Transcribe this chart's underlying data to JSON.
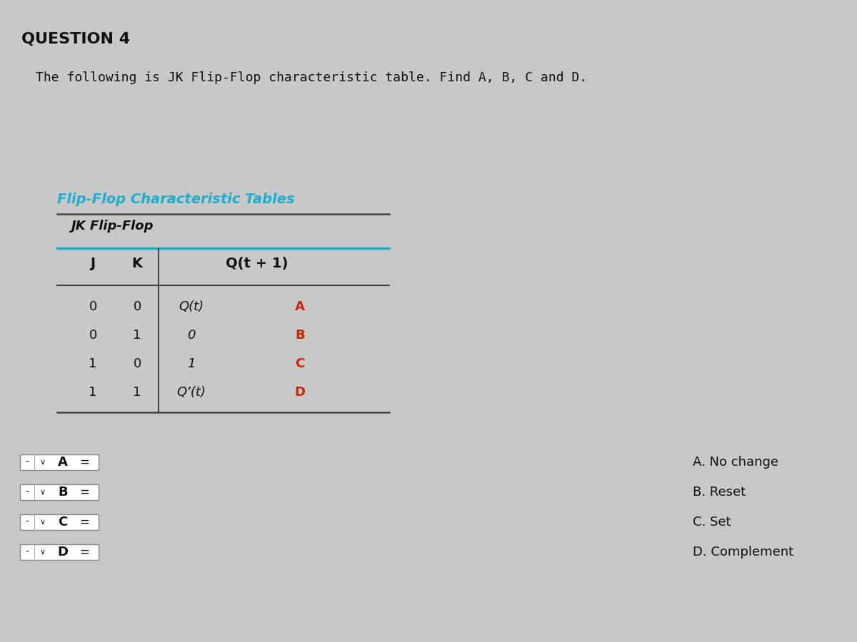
{
  "title": "QUESTION 4",
  "subtitle": "The following is JK Flip-Flop characteristic table. Find A, B, C and D.",
  "table_title": "Flip-Flop Characteristic Tables",
  "table_subtitle": "JK Flip-Flop",
  "col_headers": [
    "J",
    "K",
    "Q(t + 1)"
  ],
  "table_rows": [
    [
      "0",
      "0",
      "Q(t)",
      "A"
    ],
    [
      "0",
      "1",
      "0",
      "B"
    ],
    [
      "1",
      "0",
      "1",
      "C"
    ],
    [
      "1",
      "1",
      "Q’(t)",
      "D"
    ]
  ],
  "answer_labels": [
    "A",
    "B",
    "C",
    "D"
  ],
  "answer_options": [
    "A. No change",
    "B. Reset",
    "C. Set",
    "D. Complement"
  ],
  "bg_color": "#c8c8c8",
  "table_title_color": "#1ab0d0",
  "header_line_color": "#1ab0d0",
  "abcd_color": "#cc2200",
  "text_color": "#111111",
  "white_bg": "#ffffff",
  "dark_line": "#444444"
}
